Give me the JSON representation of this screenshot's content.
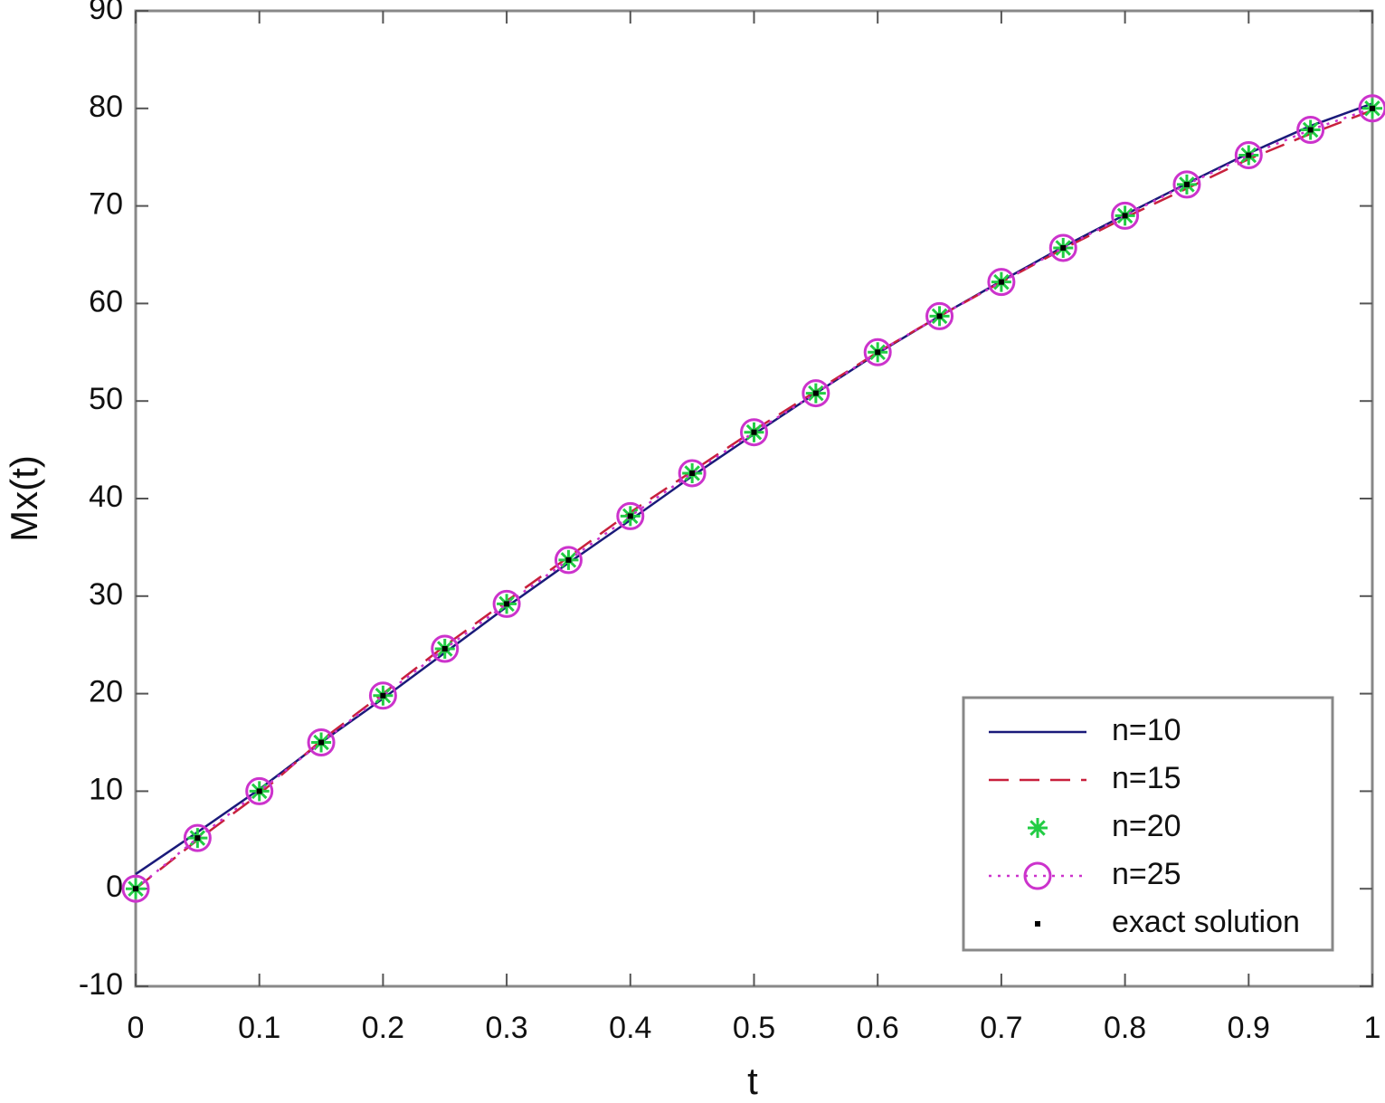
{
  "chart_data": {
    "type": "line",
    "xlabel": "t",
    "ylabel": "Mx(t)",
    "x": [
      0,
      0.05,
      0.1,
      0.15,
      0.2,
      0.25,
      0.3,
      0.35,
      0.4,
      0.45,
      0.5,
      0.55,
      0.6,
      0.65,
      0.7,
      0.75,
      0.8,
      0.85,
      0.9,
      0.95,
      1
    ],
    "series": [
      {
        "name": "n=10",
        "color": "#1a1a7a",
        "style": "solid",
        "marker": "none",
        "values": [
          1.5,
          5.8,
          10.2,
          15,
          19.5,
          24.2,
          28.9,
          33.4,
          37.8,
          42.3,
          46.6,
          50.8,
          54.9,
          58.7,
          62.3,
          65.8,
          69.1,
          72.3,
          75.4,
          78.2,
          80.5
        ]
      },
      {
        "name": "n=15",
        "color": "#c8203c",
        "style": "dashed",
        "marker": "none",
        "values": [
          0,
          5,
          9.7,
          15.2,
          20,
          24.9,
          29.5,
          34,
          38.6,
          42.8,
          47,
          51,
          55,
          58.7,
          62.2,
          65.6,
          68.8,
          71.8,
          74.8,
          77.4,
          79.8
        ]
      },
      {
        "name": "n=20",
        "color": "#22cc44",
        "style": "none",
        "marker": "asterisk",
        "values": [
          0,
          5.2,
          10,
          15,
          19.8,
          24.6,
          29.2,
          33.7,
          38.2,
          42.6,
          46.8,
          50.8,
          55,
          58.7,
          62.2,
          65.7,
          69,
          72.2,
          75.2,
          77.8,
          80
        ]
      },
      {
        "name": "n=25",
        "color": "#cc33cc",
        "style": "dotted",
        "marker": "circle",
        "values": [
          0,
          5.2,
          10,
          15,
          19.8,
          24.6,
          29.2,
          33.7,
          38.2,
          42.6,
          46.8,
          50.8,
          55,
          58.7,
          62.2,
          65.7,
          69,
          72.2,
          75.2,
          77.8,
          80
        ]
      },
      {
        "name": "exact solution",
        "color": "#000000",
        "style": "none",
        "marker": "dot",
        "values": [
          0,
          5.2,
          10,
          15,
          19.8,
          24.6,
          29.2,
          33.7,
          38.2,
          42.6,
          46.8,
          50.8,
          55,
          58.7,
          62.2,
          65.7,
          69,
          72.2,
          75.2,
          77.8,
          80
        ]
      }
    ],
    "xlim": [
      0,
      1
    ],
    "xticks": [
      0,
      0.1,
      0.2,
      0.3,
      0.4,
      0.5,
      0.6,
      0.7,
      0.8,
      0.9,
      1
    ],
    "ylim": [
      -10,
      90
    ],
    "yticks": [
      -10,
      0,
      10,
      20,
      30,
      40,
      50,
      60,
      70,
      80,
      90
    ],
    "grid": false,
    "legend_position": "lower right"
  }
}
